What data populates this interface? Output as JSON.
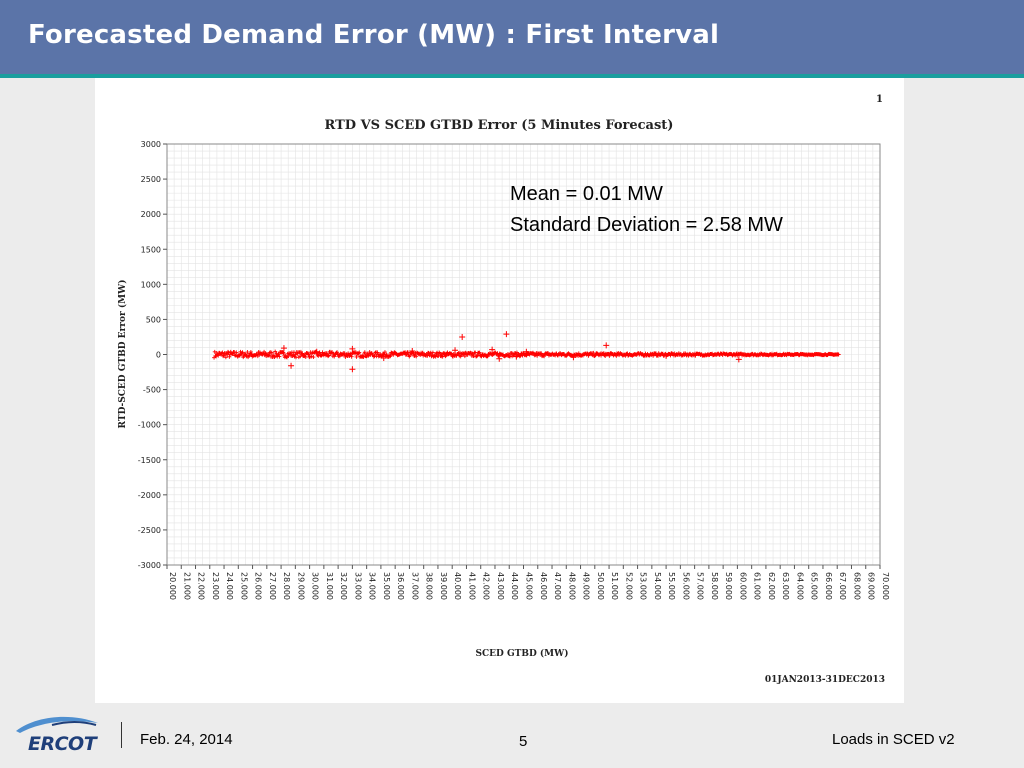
{
  "slide": {
    "title": "Forecasted Demand Error (MW) : First Interval",
    "footer_date": "Feb. 24, 2014",
    "footer_page": "5",
    "footer_right": "Loads in SCED v2",
    "logo_text": "ERCOT"
  },
  "colors": {
    "header": "#5b74a8",
    "header_stripe": "#1a9e9e",
    "series": "#ff0000",
    "grid": "#e3e3e3"
  },
  "chart_data": {
    "type": "scatter",
    "title": "RTD VS SCED GTBD Error (5 Minutes Forecast)",
    "xlabel": "SCED GTBD (MW)",
    "ylabel": "RTD-SCED GTBD Error (MW)",
    "page_marker": "1",
    "date_range": "01JAN2013-31DEC2013",
    "annotations": [
      "Mean = 0.01 MW",
      "Standard Deviation = 2.58 MW"
    ],
    "xlim": [
      20000,
      70000
    ],
    "ylim": [
      -3000,
      3000
    ],
    "xticks": [
      20000,
      21000,
      22000,
      23000,
      24000,
      25000,
      26000,
      27000,
      28000,
      29000,
      30000,
      31000,
      32000,
      33000,
      34000,
      35000,
      36000,
      37000,
      38000,
      39000,
      40000,
      41000,
      42000,
      43000,
      44000,
      45000,
      46000,
      47000,
      48000,
      49000,
      50000,
      51000,
      52000,
      53000,
      54000,
      55000,
      56000,
      57000,
      58000,
      59000,
      60000,
      61000,
      62000,
      63000,
      64000,
      65000,
      66000,
      67000,
      68000,
      69000,
      70000
    ],
    "yticks": [
      3000,
      2500,
      2000,
      1500,
      1000,
      500,
      0,
      -500,
      -1000,
      -1500,
      -2000,
      -2500,
      -3000
    ],
    "grid": true,
    "series": [
      {
        "dense_band": {
          "x_start": 23300,
          "x_end": 67100,
          "y_spread_start": 45,
          "y_spread_end": 8
        },
        "points": [
          {
            "x": 28200,
            "y": 90
          },
          {
            "x": 28700,
            "y": -160
          },
          {
            "x": 33000,
            "y": 80
          },
          {
            "x": 33000,
            "y": -210
          },
          {
            "x": 37200,
            "y": 50
          },
          {
            "x": 40200,
            "y": 60
          },
          {
            "x": 40700,
            "y": 250
          },
          {
            "x": 42800,
            "y": 70
          },
          {
            "x": 43300,
            "y": -60
          },
          {
            "x": 43800,
            "y": 290
          },
          {
            "x": 45200,
            "y": 40
          },
          {
            "x": 50800,
            "y": 130
          },
          {
            "x": 60100,
            "y": -70
          },
          {
            "x": 44500,
            "y": -30
          },
          {
            "x": 48500,
            "y": -40
          },
          {
            "x": 35200,
            "y": -50
          },
          {
            "x": 30500,
            "y": 40
          },
          {
            "x": 55000,
            "y": -20
          }
        ]
      }
    ]
  }
}
